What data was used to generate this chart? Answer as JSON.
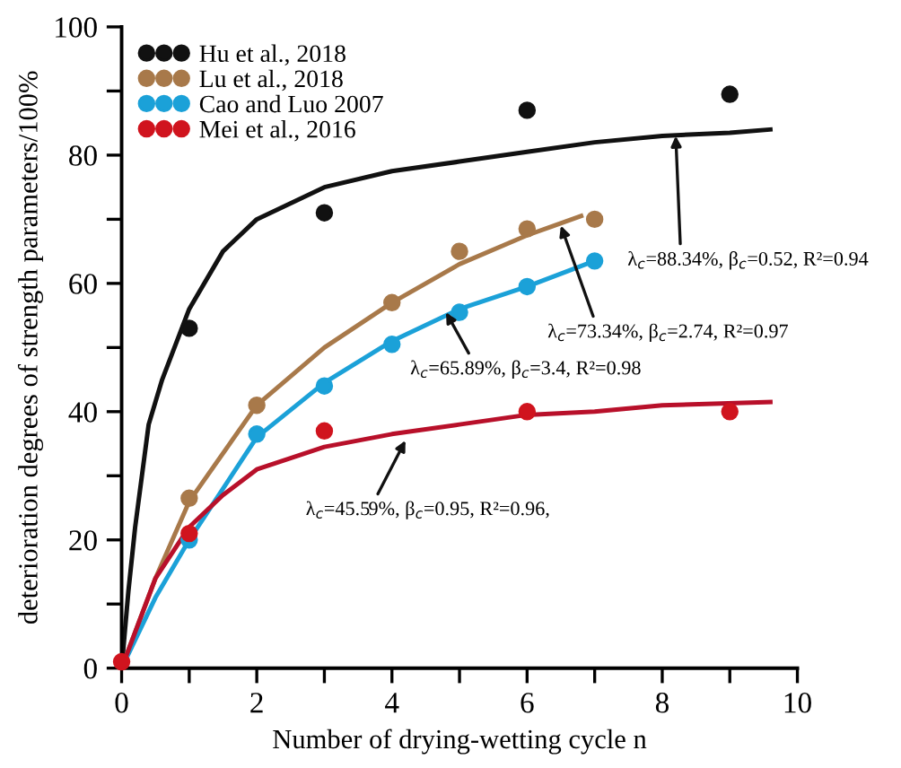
{
  "chart_data": {
    "type": "scatter",
    "xlabel": "Number of drying-wetting cycle n",
    "ylabel": "deterioration degrees of strength parameters/100%",
    "xlim": [
      0,
      10
    ],
    "ylim": [
      0,
      100
    ],
    "xticks": [
      0,
      {
        "value": 1,
        "label": null
      },
      2,
      {
        "value": 3,
        "label": null
      },
      4,
      {
        "value": 5,
        "label": null
      },
      6,
      {
        "value": 7,
        "label": null
      },
      8,
      {
        "value": 9,
        "label": null
      },
      10
    ],
    "yticks": [
      0,
      {
        "value": 10,
        "label": null
      },
      20,
      {
        "value": 30,
        "label": null
      },
      40,
      {
        "value": 50,
        "label": null
      },
      60,
      {
        "value": 70,
        "label": null
      },
      80,
      {
        "value": 90,
        "label": null
      },
      100
    ],
    "grid": false,
    "legend": "top left",
    "marker": "circle",
    "series": [
      {
        "name": "Hu et al., 2018",
        "color": "#111111",
        "x": [
          1,
          3,
          6,
          9
        ],
        "values": [
          53,
          71,
          87,
          89.5
        ]
      },
      {
        "name": "Lu et al., 2018",
        "color": "#a8794a",
        "x": [
          1,
          2,
          4,
          5,
          6,
          7
        ],
        "values": [
          26.5,
          41,
          57,
          65,
          68.5,
          70
        ]
      },
      {
        "name": "Cao and Luo 2007",
        "color": "#1ba1d8",
        "x": [
          1,
          2,
          3,
          4,
          5,
          6,
          7
        ],
        "values": [
          20,
          36.5,
          44,
          50.5,
          55.5,
          59.5,
          63.5
        ]
      },
      {
        "name": "Mei et al., 2016",
        "color": "#d0141e",
        "x": [
          0,
          1,
          3,
          6,
          9
        ],
        "values": [
          1,
          21,
          37,
          40,
          40
        ]
      },
      {
        "type": "line",
        "marker": "none",
        "color": "#111111",
        "x": [
          0,
          0.1,
          0.2,
          0.4,
          0.6,
          1,
          1.5,
          2,
          3,
          4,
          5,
          6,
          7,
          8,
          9,
          9.6
        ],
        "values": [
          0,
          12,
          22,
          38,
          45,
          56,
          65,
          70,
          75,
          77.5,
          79,
          80.5,
          82,
          83,
          83.5,
          84
        ]
      },
      {
        "type": "line",
        "marker": "none",
        "color": "#a8794a",
        "x": [
          0,
          0.5,
          1,
          2,
          3,
          4,
          5,
          6,
          6.8
        ],
        "values": [
          0,
          14,
          26,
          41,
          50,
          57,
          63,
          67.5,
          70.5
        ]
      },
      {
        "type": "line",
        "marker": "none",
        "color": "#1ba1d8",
        "x": [
          0,
          0.5,
          1,
          2,
          3,
          4,
          5,
          6,
          7
        ],
        "values": [
          0,
          11,
          20,
          36,
          44.5,
          51,
          56,
          59.5,
          63.5
        ]
      },
      {
        "type": "line",
        "marker": "none",
        "color": "#b8102a",
        "x": [
          0,
          0.5,
          1,
          1.5,
          2,
          3,
          4,
          5,
          6,
          7,
          8,
          9.6
        ],
        "values": [
          0,
          14,
          22,
          27,
          31,
          34.5,
          36.5,
          38,
          39.5,
          40,
          41,
          41.5
        ]
      }
    ],
    "annotations": [
      {
        "text": "λ$_{c}$=88.34%, β$_{c}$=0.52, R²=0.94",
        "x": 8.2,
        "y": 83
      },
      {
        "text": "λ$_{c}$=73.34%, β$_{c}$=2.74, R²=0.97",
        "x": 6.5,
        "y": 69
      },
      {
        "text": "λ$_{c}$=65.89%, β$_{c}$=3.4, R²=0.98",
        "x": 4.8,
        "y": 55.5
      },
      {
        "text": "λ$_{c}$=45.59%, β$_{c}$=0.95, R²=0.96,",
        "x": 4.2,
        "y": 35.5
      }
    ]
  }
}
